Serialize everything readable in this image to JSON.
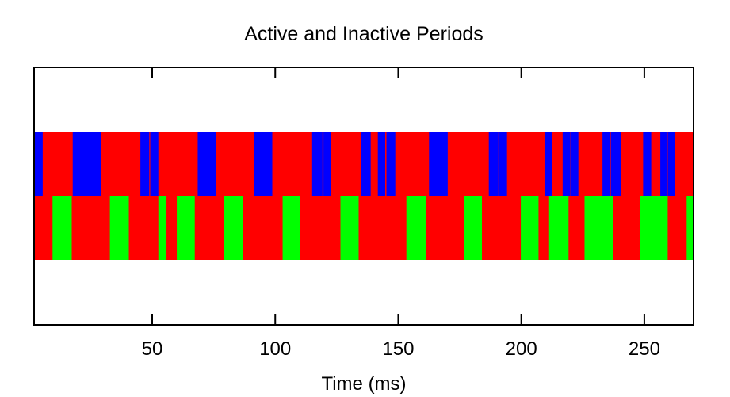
{
  "chart_data": {
    "type": "timeline",
    "title": "Active and Inactive Periods",
    "xlabel": "Time (ms)",
    "ylabel": "",
    "xlim": [
      2,
      270
    ],
    "xticks": [
      50,
      100,
      150,
      200,
      250
    ],
    "grid": false,
    "legend": "none",
    "colors": {
      "inactive": "#ff0000",
      "active_row1": "#0000ff",
      "active_row2": "#00ff00"
    },
    "rows": [
      {
        "background": "#ff0000",
        "active_color": "#0000ff",
        "active_intervals": [
          [
            2,
            5.5
          ],
          [
            17.7,
            29.3
          ],
          [
            45.2,
            48.8
          ],
          [
            49.2,
            52.5
          ],
          [
            68.5,
            75.8
          ],
          [
            91.5,
            98.8
          ],
          [
            115,
            119.2
          ],
          [
            119.6,
            122.5
          ],
          [
            135,
            138.8
          ],
          [
            141.7,
            144.7
          ],
          [
            145.2,
            148.8
          ],
          [
            162.5,
            170.1
          ],
          [
            186.8,
            190.7
          ],
          [
            190.9,
            194.2
          ],
          [
            209.5,
            212.5
          ],
          [
            216.8,
            219.8
          ],
          [
            219.9,
            223.2
          ],
          [
            233,
            236.2
          ],
          [
            236.4,
            240.5
          ],
          [
            249.5,
            252.8
          ],
          [
            256.5,
            259.3
          ],
          [
            259.5,
            262.4
          ]
        ]
      },
      {
        "background": "#ff0000",
        "active_color": "#00ff00",
        "active_intervals": [
          [
            9.5,
            17.3
          ],
          [
            32.8,
            40.5
          ],
          [
            52.5,
            55.8
          ],
          [
            60,
            67.3
          ],
          [
            79,
            86.8
          ],
          [
            103,
            110.2
          ],
          [
            126.5,
            133.9
          ],
          [
            153.3,
            161.3
          ],
          [
            176.8,
            184
          ],
          [
            199.8,
            207
          ],
          [
            211.3,
            219.2
          ],
          [
            225.7,
            237.2
          ],
          [
            248.2,
            259.5
          ],
          [
            267.2,
            270
          ]
        ]
      }
    ]
  }
}
